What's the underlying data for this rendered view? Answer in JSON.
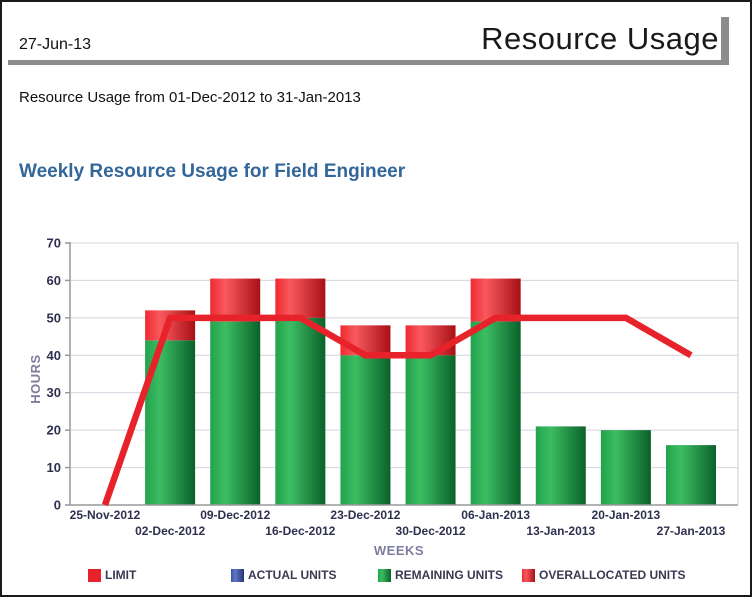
{
  "header": {
    "date": "27-Jun-13",
    "title": "Resource Usage",
    "subtitle": "Resource Usage from 01-Dec-2012 to 31-Jan-2013"
  },
  "chart_data": {
    "type": "bar",
    "subtype": "stacked-bars-with-limit-line",
    "title": "Weekly Resource Usage for Field Engineer",
    "xlabel": "WEEKS",
    "ylabel": "HOURS",
    "ylim": [
      0,
      70
    ],
    "ytick_step": 10,
    "grid": true,
    "legend_position": "bottom",
    "categories": [
      "25-Nov-2012",
      "02-Dec-2012",
      "09-Dec-2012",
      "16-Dec-2012",
      "23-Dec-2012",
      "30-Dec-2012",
      "06-Jan-2013",
      "13-Jan-2013",
      "20-Jan-2013",
      "27-Jan-2013"
    ],
    "series": [
      {
        "name": "LIMIT",
        "render": "line",
        "palette": "limit",
        "values": [
          0,
          50,
          50,
          50,
          40,
          40,
          50,
          50,
          50,
          40
        ]
      },
      {
        "name": "ACTUAL UNITS",
        "render": "bar",
        "palette": "blue",
        "values": [
          0,
          0,
          0,
          0,
          0,
          0,
          0,
          0,
          0,
          0
        ]
      },
      {
        "name": "REMAINING UNITS",
        "render": "bar",
        "palette": "green",
        "values": [
          0,
          44,
          49,
          50,
          40,
          40,
          49,
          21,
          20,
          16
        ]
      },
      {
        "name": "OVERALLOCATED UNITS",
        "render": "bar",
        "palette": "red",
        "values": [
          0,
          8,
          11.5,
          10.5,
          8,
          8,
          11.5,
          0,
          0,
          0
        ]
      }
    ]
  },
  "legend": {
    "items": [
      {
        "label": "LIMIT",
        "palette": "limit"
      },
      {
        "label": "ACTUAL UNITS",
        "palette": "blue"
      },
      {
        "label": "REMAINING UNITS",
        "palette": "green"
      },
      {
        "label": "OVERALLOCATED UNITS",
        "palette": "red"
      }
    ]
  },
  "colors": {
    "limit": "#e8222a",
    "red": "#ee2b31",
    "red_light": "#f8595e",
    "red_dark": "#a81016",
    "green": "#22a24b",
    "green_light": "#3cbd63",
    "green_dark": "#0a6129",
    "blue": "#3a50a0",
    "blue_light": "#6078c8",
    "blue_dark": "#273575",
    "grid": "#d4d4e0",
    "axis": "#999999",
    "tick_label": "#2f2f4f",
    "axis_title": "#7c7c9e",
    "chart_title": "#336699",
    "rule": "#8c8c8c"
  }
}
